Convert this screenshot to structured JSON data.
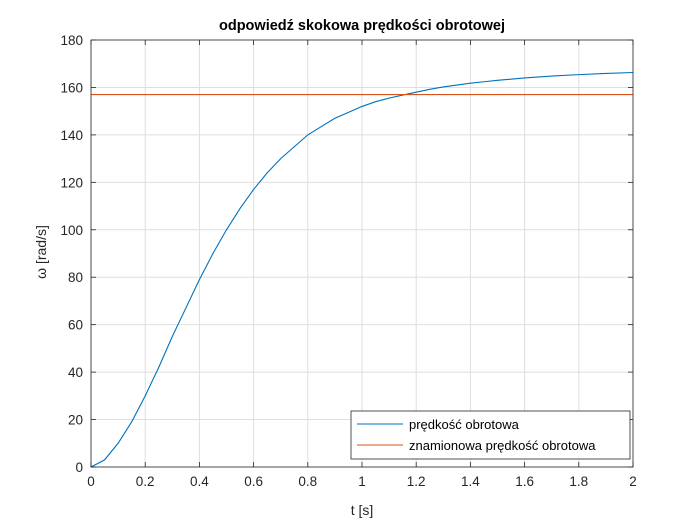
{
  "chart_data": {
    "type": "line",
    "title": "odpowiedź skokowa prędkości obrotowej",
    "xlabel": "t [s]",
    "ylabel": "ω [rad/s]",
    "xlim": [
      0,
      2
    ],
    "ylim": [
      0,
      180
    ],
    "xticks": [
      0,
      0.2,
      0.4,
      0.6,
      0.8,
      1,
      1.2,
      1.4,
      1.6,
      1.8,
      2
    ],
    "xtick_labels": [
      "0",
      "0.2",
      "0.4",
      "0.6",
      "0.8",
      "1",
      "1.2",
      "1.4",
      "1.6",
      "1.8",
      "2"
    ],
    "yticks": [
      0,
      20,
      40,
      60,
      80,
      100,
      120,
      140,
      160,
      180
    ],
    "ytick_labels": [
      "0",
      "20",
      "40",
      "60",
      "80",
      "100",
      "120",
      "140",
      "160",
      "180"
    ],
    "grid": true,
    "legend_position": "bottom-right",
    "series": [
      {
        "name": "prędkość obrotowa",
        "color": "#0072BD",
        "x": [
          0,
          0.05,
          0.1,
          0.15,
          0.2,
          0.25,
          0.3,
          0.35,
          0.4,
          0.45,
          0.5,
          0.55,
          0.6,
          0.65,
          0.7,
          0.75,
          0.8,
          0.85,
          0.9,
          0.95,
          1.0,
          1.05,
          1.1,
          1.15,
          1.2,
          1.25,
          1.3,
          1.35,
          1.4,
          1.45,
          1.5,
          1.6,
          1.7,
          1.8,
          1.9,
          2.0
        ],
        "y": [
          0,
          3,
          10,
          19,
          30,
          42,
          55,
          67,
          79,
          90,
          100,
          109,
          117,
          124,
          130,
          135,
          140,
          143.5,
          147,
          149.5,
          152,
          154,
          155.5,
          156.8,
          158,
          159.2,
          160.2,
          161,
          161.8,
          162.4,
          163,
          164,
          164.8,
          165.4,
          165.9,
          166.3
        ]
      },
      {
        "name": "znamionowa prędkość obrotowa",
        "color": "#D95319",
        "x": [
          0,
          2
        ],
        "y": [
          157,
          157
        ]
      }
    ]
  }
}
